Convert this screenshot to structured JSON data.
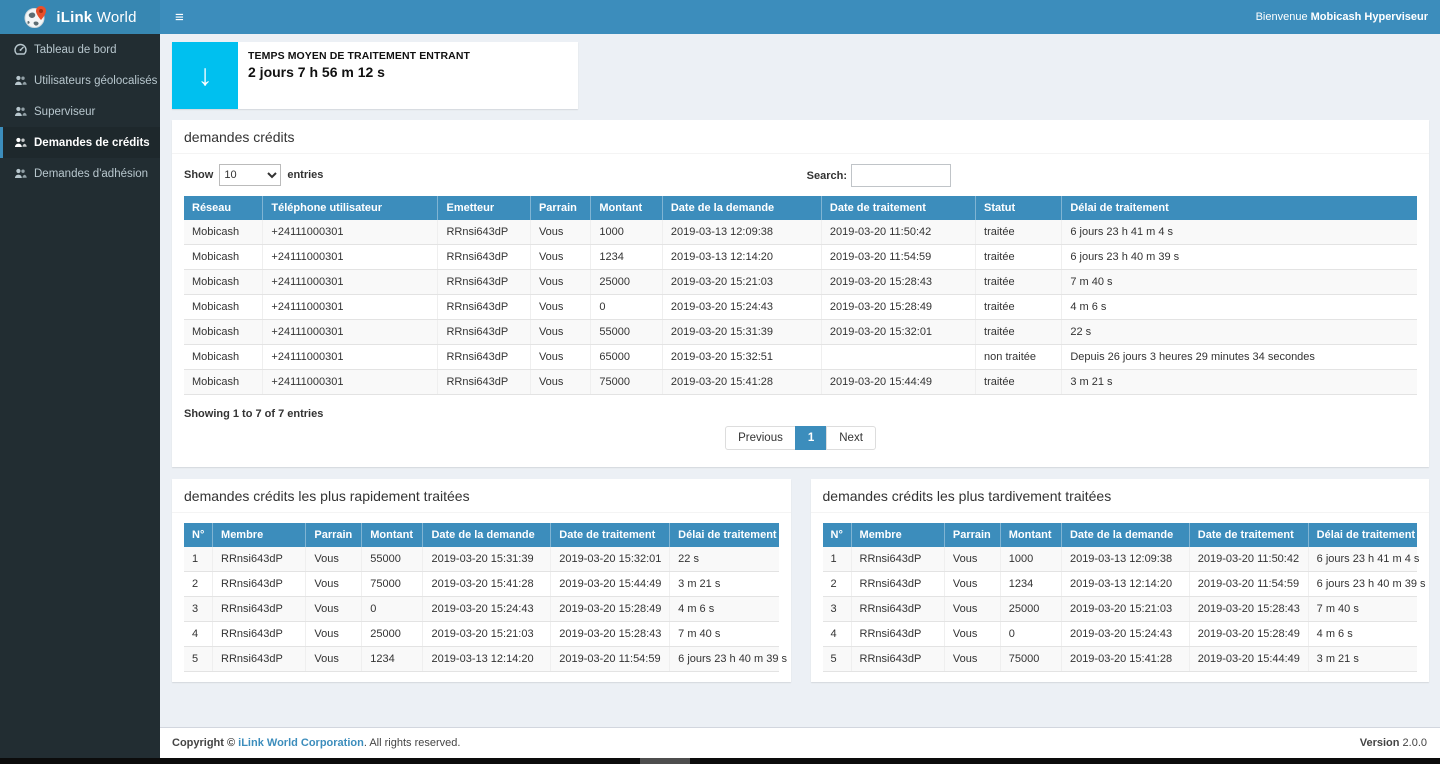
{
  "colors": {
    "accent": "#3c8dbc",
    "aqua": "#00c0ef",
    "sidebar": "#222d32"
  },
  "brand": {
    "bold": "iLink",
    "light": " World"
  },
  "navbar": {
    "hamburger": "≡",
    "welcome_prefix": "Bienvenue ",
    "welcome_name": "Mobicash Hyperviseur"
  },
  "sidebar": {
    "items": [
      {
        "label": "Tableau de bord",
        "icon": "dashboard-icon",
        "active": false
      },
      {
        "label": "Utilisateurs géolocalisés",
        "icon": "users-icon",
        "active": false
      },
      {
        "label": "Superviseur",
        "icon": "users-icon",
        "active": false
      },
      {
        "label": "Demandes de crédits",
        "icon": "users-icon",
        "active": true
      },
      {
        "label": "Demandes d'adhésion",
        "icon": "users-icon",
        "active": false
      }
    ]
  },
  "stat_card": {
    "icon": "down-arrow-icon",
    "icon_color": "#00c0ef",
    "label": "TEMPS MOYEN DE TRAITEMENT ENTRANT",
    "value": "2 jours 7 h 56 m 12 s"
  },
  "credits_panel": {
    "title": "demandes crédits",
    "show_label": "Show",
    "entries_label": "entries",
    "page_size": "10",
    "page_size_options": [
      "10"
    ],
    "search_label": "Search:",
    "search_value": "",
    "table": {
      "columns": [
        "Réseau",
        "Téléphone utilisateur",
        "Emetteur",
        "Parrain",
        "Montant",
        "Date de la demande",
        "Date de traitement",
        "Statut",
        "Délai de traitement"
      ],
      "rows": [
        [
          "Mobicash",
          "+24111000301",
          "RRnsi643dP",
          "Vous",
          "1000",
          "2019-03-13 12:09:38",
          "2019-03-20 11:50:42",
          "traitée",
          "6 jours 23 h 41 m 4 s"
        ],
        [
          "Mobicash",
          "+24111000301",
          "RRnsi643dP",
          "Vous",
          "1234",
          "2019-03-13 12:14:20",
          "2019-03-20 11:54:59",
          "traitée",
          "6 jours 23 h 40 m 39 s"
        ],
        [
          "Mobicash",
          "+24111000301",
          "RRnsi643dP",
          "Vous",
          "25000",
          "2019-03-20 15:21:03",
          "2019-03-20 15:28:43",
          "traitée",
          "7 m 40 s"
        ],
        [
          "Mobicash",
          "+24111000301",
          "RRnsi643dP",
          "Vous",
          "0",
          "2019-03-20 15:24:43",
          "2019-03-20 15:28:49",
          "traitée",
          "4 m 6 s"
        ],
        [
          "Mobicash",
          "+24111000301",
          "RRnsi643dP",
          "Vous",
          "55000",
          "2019-03-20 15:31:39",
          "2019-03-20 15:32:01",
          "traitée",
          "22 s"
        ],
        [
          "Mobicash",
          "+24111000301",
          "RRnsi643dP",
          "Vous",
          "65000",
          "2019-03-20 15:32:51",
          "",
          "non traitée",
          "Depuis 26 jours 3 heures 29 minutes 34 secondes"
        ],
        [
          "Mobicash",
          "+24111000301",
          "RRnsi643dP",
          "Vous",
          "75000",
          "2019-03-20 15:41:28",
          "2019-03-20 15:44:49",
          "traitée",
          "3 m 21 s"
        ]
      ]
    },
    "summary": "Showing 1 to 7 of 7 entries",
    "pagination": {
      "previous": "Previous",
      "page": "1",
      "next": "Next"
    }
  },
  "fastest_panel": {
    "title": "demandes crédits les plus rapidement traitées",
    "table": {
      "columns": [
        "N°",
        "Membre",
        "Parrain",
        "Montant",
        "Date de la demande",
        "Date de traitement",
        "Délai de traitement"
      ],
      "rows": [
        [
          "1",
          "RRnsi643dP",
          "Vous",
          "55000",
          "2019-03-20 15:31:39",
          "2019-03-20 15:32:01",
          "22 s"
        ],
        [
          "2",
          "RRnsi643dP",
          "Vous",
          "75000",
          "2019-03-20 15:41:28",
          "2019-03-20 15:44:49",
          "3 m 21 s"
        ],
        [
          "3",
          "RRnsi643dP",
          "Vous",
          "0",
          "2019-03-20 15:24:43",
          "2019-03-20 15:28:49",
          "4 m 6 s"
        ],
        [
          "4",
          "RRnsi643dP",
          "Vous",
          "25000",
          "2019-03-20 15:21:03",
          "2019-03-20 15:28:43",
          "7 m 40 s"
        ],
        [
          "5",
          "RRnsi643dP",
          "Vous",
          "1234",
          "2019-03-13 12:14:20",
          "2019-03-20 11:54:59",
          "6 jours 23 h 40 m 39 s"
        ]
      ]
    }
  },
  "latest_panel": {
    "title": "demandes crédits les plus tardivement traitées",
    "table": {
      "columns": [
        "N°",
        "Membre",
        "Parrain",
        "Montant",
        "Date de la demande",
        "Date de traitement",
        "Délai de traitement"
      ],
      "rows": [
        [
          "1",
          "RRnsi643dP",
          "Vous",
          "1000",
          "2019-03-13 12:09:38",
          "2019-03-20 11:50:42",
          "6 jours 23 h 41 m 4 s"
        ],
        [
          "2",
          "RRnsi643dP",
          "Vous",
          "1234",
          "2019-03-13 12:14:20",
          "2019-03-20 11:54:59",
          "6 jours 23 h 40 m 39 s"
        ],
        [
          "3",
          "RRnsi643dP",
          "Vous",
          "25000",
          "2019-03-20 15:21:03",
          "2019-03-20 15:28:43",
          "7 m 40 s"
        ],
        [
          "4",
          "RRnsi643dP",
          "Vous",
          "0",
          "2019-03-20 15:24:43",
          "2019-03-20 15:28:49",
          "4 m 6 s"
        ],
        [
          "5",
          "RRnsi643dP",
          "Vous",
          "75000",
          "2019-03-20 15:41:28",
          "2019-03-20 15:44:49",
          "3 m 21 s"
        ]
      ]
    }
  },
  "footer": {
    "copyright_bold": "Copyright © ",
    "link": "iLink World Corporation",
    "rest": ". All rights reserved.",
    "version_label": "Version ",
    "version_value": "2.0.0"
  }
}
